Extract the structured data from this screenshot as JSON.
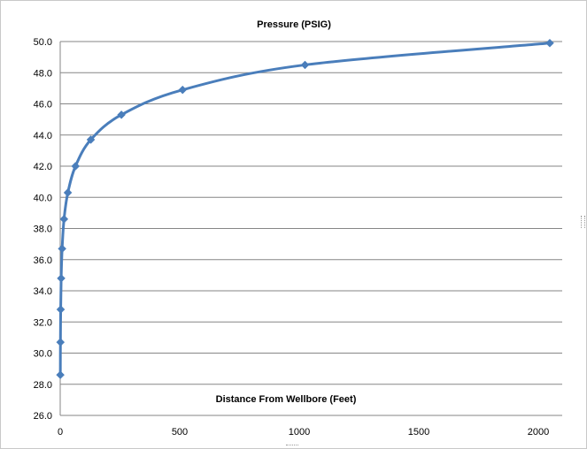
{
  "chart_data": {
    "type": "line",
    "title": "Pressure (PSIG)",
    "xlabel": "Distance From Wellbore (Feet)",
    "ylabel": "",
    "xlim": [
      0,
      2100
    ],
    "ylim": [
      26,
      50
    ],
    "yticks": [
      "26.0",
      "28.0",
      "30.0",
      "32.0",
      "34.0",
      "36.0",
      "38.0",
      "40.0",
      "42.0",
      "44.0",
      "46.0",
      "48.0",
      "50.0"
    ],
    "xticks": [
      "0",
      "500",
      "1000",
      "1500",
      "2000"
    ],
    "grid": "horizontal",
    "series": [
      {
        "color": "#4a7ebb",
        "marker": "diamond",
        "smooth": true,
        "x": [
          0.5,
          1,
          2,
          4,
          8,
          16,
          32,
          64,
          128,
          256,
          512,
          1024,
          2048
        ],
        "y": [
          28.6,
          30.7,
          32.8,
          34.8,
          36.7,
          38.6,
          40.3,
          42.0,
          43.7,
          45.3,
          46.9,
          48.5,
          49.9
        ]
      }
    ]
  }
}
